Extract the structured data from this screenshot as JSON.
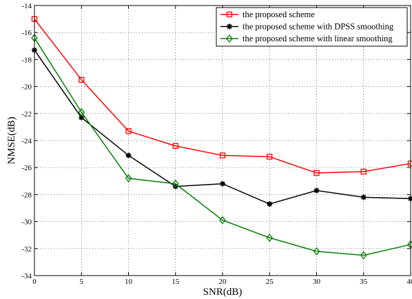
{
  "chart_data": {
    "type": "line",
    "xlabel": "SNR(dB)",
    "ylabel": "NMSE(dB)",
    "xlim": [
      0,
      40
    ],
    "ylim": [
      -34,
      -14
    ],
    "xticks": [
      0,
      5,
      10,
      15,
      20,
      25,
      30,
      35,
      40
    ],
    "yticks": [
      -34,
      -32,
      -30,
      -28,
      -26,
      -24,
      -22,
      -20,
      -18,
      -16,
      -14
    ],
    "grid": true,
    "legend_position": "top-right",
    "x": [
      0,
      5,
      10,
      15,
      20,
      25,
      30,
      35,
      40
    ],
    "series": [
      {
        "name": "the proposed  scheme",
        "color": "#ff0000",
        "marker": "square",
        "values": [
          -15.0,
          -19.5,
          -23.3,
          -24.4,
          -25.1,
          -25.2,
          -26.4,
          -26.3,
          -25.7
        ]
      },
      {
        "name": "the proposed scheme with DPSS smoothing",
        "color": "#000000",
        "marker": "star",
        "values": [
          -17.3,
          -22.3,
          -25.1,
          -27.4,
          -27.2,
          -28.7,
          -27.7,
          -28.2,
          -28.3
        ]
      },
      {
        "name": "the proposed  scheme with linear smoothing",
        "color": "#008000",
        "marker": "diamond",
        "values": [
          -16.4,
          -21.9,
          -26.8,
          -27.2,
          -29.9,
          -31.2,
          -32.2,
          -32.5,
          -31.7
        ]
      }
    ]
  }
}
